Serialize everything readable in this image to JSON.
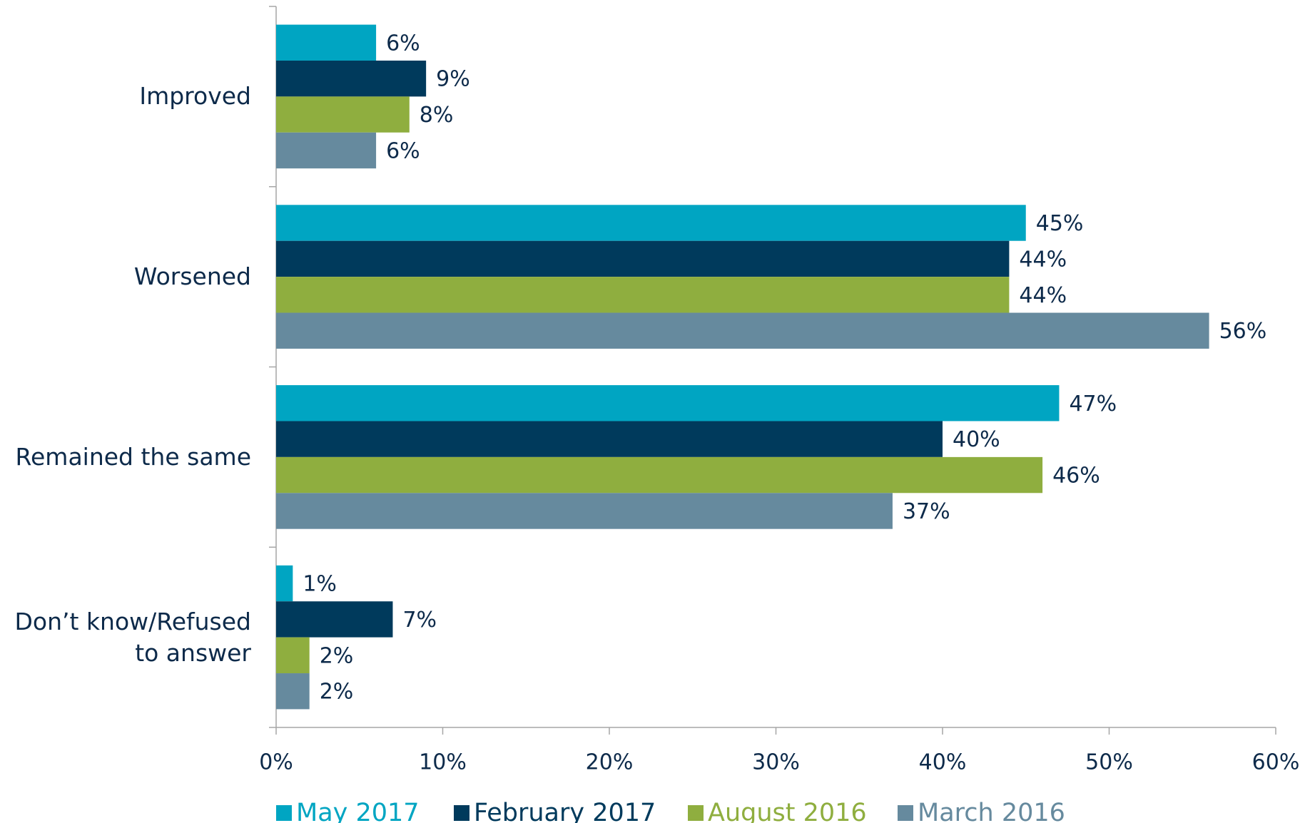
{
  "chart_data": {
    "type": "bar",
    "orientation": "horizontal",
    "categories": [
      "Improved",
      "Worsened",
      "Remained the same",
      "Don’t know/Refused to answer"
    ],
    "series": [
      {
        "name": "May 2017",
        "color": "#00a5c2",
        "values": [
          6,
          45,
          47,
          1
        ],
        "value_labels": [
          "6%",
          "45%",
          "47%",
          "1%"
        ]
      },
      {
        "name": "February 2017",
        "color": "#003a5c",
        "values": [
          9,
          44,
          40,
          7
        ],
        "value_labels": [
          "9%",
          "44%",
          "40%",
          "7%"
        ]
      },
      {
        "name": "August 2016",
        "color": "#8fae3f",
        "values": [
          8,
          44,
          46,
          2
        ],
        "value_labels": [
          "8%",
          "44%",
          "46%",
          "2%"
        ]
      },
      {
        "name": "March 2016",
        "color": "#668a9e",
        "values": [
          6,
          56,
          37,
          2
        ],
        "value_labels": [
          "6%",
          "56%",
          "37%",
          "2%"
        ]
      }
    ],
    "xlim": [
      0,
      60
    ],
    "xticks": [
      {
        "value": 0,
        "label": "0%"
      },
      {
        "value": 10,
        "label": "10%"
      },
      {
        "value": 20,
        "label": "20%"
      },
      {
        "value": 30,
        "label": "30%"
      },
      {
        "value": 40,
        "label": "40%"
      },
      {
        "value": 50,
        "label": "50%"
      },
      {
        "value": 60,
        "label": "60%"
      }
    ],
    "legend": "bottom"
  }
}
